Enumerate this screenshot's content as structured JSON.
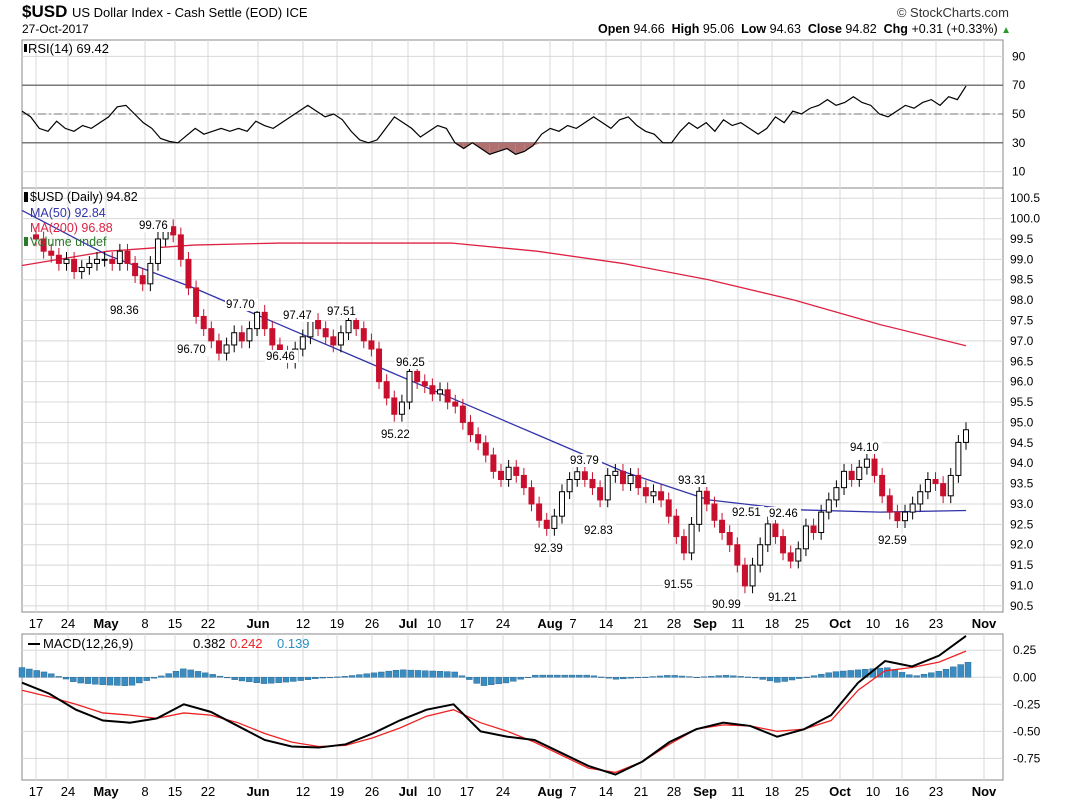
{
  "header": {
    "symbol": "$USD",
    "name": "US Dollar Index - Cash Settle (EOD)",
    "exchange": "ICE",
    "brand": "© StockCharts.com",
    "date": "27-Oct-2017",
    "open_label": "Open",
    "open": "94.66",
    "high_label": "High",
    "high": "95.06",
    "low_label": "Low",
    "low": "94.63",
    "close_label": "Close",
    "close": "94.82",
    "chg_label": "Chg",
    "chg": "+0.31 (+0.33%)"
  },
  "colors": {
    "up": "#ffffff",
    "down": "#c8102e",
    "ma50": "#3333aa",
    "ma200": "#dd2244",
    "rsi": "#000000",
    "rsi_fill": "#b07070",
    "macd": "#000000",
    "signal": "#ee2222",
    "hist": "#3a8cc0",
    "grid": "#d8d8d8"
  },
  "chart_data": [
    {
      "type": "line",
      "panel": "RSI",
      "legend": "RSI(14) 69.42",
      "ylim": [
        0,
        100
      ],
      "yticks": [
        10,
        30,
        50,
        70,
        90
      ],
      "levels": [
        70,
        50,
        30
      ],
      "series": [
        {
          "name": "RSI(14)",
          "values": [
            52,
            48,
            40,
            38,
            45,
            40,
            38,
            42,
            40,
            44,
            48,
            55,
            56,
            50,
            44,
            40,
            33,
            31,
            30,
            35,
            40,
            36,
            38,
            40,
            38,
            40,
            38,
            45,
            42,
            40,
            44,
            48,
            52,
            56,
            52,
            48,
            50,
            46,
            38,
            32,
            30,
            32,
            40,
            48,
            44,
            40,
            34,
            38,
            42,
            40,
            30,
            26,
            30,
            26,
            22,
            24,
            26,
            22,
            24,
            28,
            36,
            40,
            38,
            42,
            40,
            44,
            48,
            44,
            40,
            46,
            48,
            42,
            38,
            36,
            30,
            30,
            38,
            44,
            40,
            44,
            38,
            46,
            42,
            44,
            40,
            36,
            40,
            48,
            44,
            52,
            50,
            54,
            56,
            60,
            56,
            58,
            62,
            58,
            56,
            50,
            48,
            52,
            56,
            54,
            58,
            60,
            56,
            62,
            60,
            69.42
          ]
        }
      ]
    },
    {
      "type": "candlestick",
      "panel": "Price",
      "legend": [
        "$USD (Daily) 94.82",
        "MA(50) 92.84",
        "MA(200) 96.88",
        "Volume undef"
      ],
      "ylim": [
        90.35,
        100.75
      ],
      "yticks": [
        "100.5",
        "100.0",
        "99.5",
        "99.0",
        "98.5",
        "98.0",
        "97.5",
        "97.0",
        "96.5",
        "96.0",
        "95.5",
        "95.0",
        "94.5",
        "94.0",
        "93.5",
        "93.0",
        "92.5",
        "92.0",
        "91.5",
        "91.0",
        "90.5"
      ],
      "closes": [
        99.5,
        99.2,
        99.1,
        98.9,
        99.0,
        98.7,
        98.8,
        98.9,
        99.0,
        99.0,
        98.9,
        99.2,
        98.9,
        98.6,
        98.4,
        98.9,
        99.5,
        99.8,
        99.6,
        99.0,
        98.3,
        97.6,
        97.3,
        97.0,
        96.7,
        96.9,
        97.2,
        97.0,
        97.3,
        97.7,
        97.3,
        96.9,
        96.7,
        96.5,
        96.8,
        97.1,
        97.5,
        97.3,
        97.1,
        96.9,
        97.2,
        97.5,
        97.3,
        97.0,
        96.8,
        96.0,
        95.6,
        95.2,
        95.5,
        96.25,
        96.0,
        95.9,
        95.7,
        95.8,
        95.5,
        95.4,
        95.0,
        94.7,
        94.5,
        94.2,
        93.8,
        93.6,
        93.9,
        93.7,
        93.4,
        93.0,
        92.6,
        92.4,
        92.7,
        93.3,
        93.6,
        93.79,
        93.6,
        93.4,
        93.1,
        93.7,
        93.8,
        93.5,
        93.7,
        93.4,
        93.2,
        93.3,
        93.1,
        92.7,
        92.2,
        91.8,
        92.5,
        93.31,
        93.0,
        92.6,
        92.3,
        92.0,
        91.5,
        90.99,
        91.5,
        92.0,
        92.51,
        92.2,
        91.8,
        91.6,
        91.9,
        92.46,
        92.3,
        92.8,
        93.1,
        93.4,
        93.8,
        93.6,
        93.9,
        94.1,
        93.7,
        93.2,
        92.8,
        92.59,
        92.8,
        93.0,
        93.3,
        93.6,
        93.5,
        93.2,
        93.7,
        94.51,
        94.82
      ],
      "annotations": [
        "99.76",
        "98.36",
        "97.70",
        "96.70",
        "96.46",
        "97.47",
        "97.51",
        "96.25",
        "95.22",
        "93.79",
        "92.83",
        "92.39",
        "93.31",
        "91.55",
        "92.51",
        "92.46",
        "90.99",
        "91.21",
        "94.10",
        "92.59"
      ],
      "series": [
        {
          "name": "MA(50)",
          "values": [
            100.2,
            99.1,
            98.3,
            97.4,
            96.5,
            95.6,
            94.7,
            93.8,
            93.1,
            92.86,
            92.8,
            92.84
          ]
        },
        {
          "name": "MA(200)",
          "values": [
            98.85,
            99.2,
            99.35,
            99.4,
            99.4,
            99.4,
            99.2,
            98.9,
            98.5,
            98.0,
            97.4,
            96.88
          ]
        }
      ]
    },
    {
      "type": "line",
      "panel": "MACD",
      "legend_label": "MACD(12,26,9)",
      "legend_macd": "0.382",
      "legend_signal": "0.242",
      "legend_hist": "0.139",
      "ylim": [
        -0.95,
        0.4
      ],
      "yticks": [
        "0.25",
        "0.00",
        "-0.25",
        "-0.50",
        "-0.75"
      ],
      "series": [
        {
          "name": "MACD",
          "values": [
            -0.05,
            -0.15,
            -0.3,
            -0.4,
            -0.42,
            -0.38,
            -0.25,
            -0.32,
            -0.45,
            -0.58,
            -0.64,
            -0.65,
            -0.62,
            -0.52,
            -0.4,
            -0.3,
            -0.25,
            -0.5,
            -0.55,
            -0.58,
            -0.7,
            -0.82,
            -0.9,
            -0.78,
            -0.6,
            -0.48,
            -0.42,
            -0.45,
            -0.55,
            -0.48,
            -0.35,
            -0.05,
            0.15,
            0.1,
            0.2,
            0.382
          ]
        },
        {
          "name": "Signal",
          "values": [
            -0.12,
            -0.18,
            -0.25,
            -0.33,
            -0.35,
            -0.38,
            -0.33,
            -0.35,
            -0.42,
            -0.52,
            -0.6,
            -0.64,
            -0.63,
            -0.56,
            -0.47,
            -0.36,
            -0.3,
            -0.42,
            -0.5,
            -0.6,
            -0.72,
            -0.84,
            -0.88,
            -0.78,
            -0.62,
            -0.48,
            -0.44,
            -0.45,
            -0.5,
            -0.48,
            -0.4,
            -0.12,
            0.06,
            0.09,
            0.14,
            0.242
          ]
        },
        {
          "name": "Histogram",
          "values": [
            0.09,
            0.04,
            -0.05,
            -0.07,
            -0.08,
            0,
            0.08,
            0.03,
            -0.03,
            -0.06,
            -0.04,
            -0.01,
            0.01,
            0.04,
            0.07,
            0.06,
            0.05,
            -0.08,
            -0.05,
            0.02,
            0.02,
            0.02,
            -0.02,
            0,
            0.02,
            0,
            0.02,
            0,
            -0.05,
            0,
            0.05,
            0.07,
            0.09,
            0.01,
            0.06,
            0.139
          ]
        }
      ]
    }
  ],
  "xaxis": {
    "labels": [
      "17",
      "24",
      "May",
      "8",
      "15",
      "22",
      "Jun",
      "12",
      "19",
      "26",
      "Jul",
      "10",
      "17",
      "24",
      "Aug",
      "7",
      "14",
      "21",
      "28",
      "Sep",
      "11",
      "18",
      "25",
      "Oct",
      "10",
      "16",
      "23",
      "Nov"
    ],
    "bold": [
      "May",
      "Jun",
      "Jul",
      "Aug",
      "Sep",
      "Oct",
      "Nov"
    ]
  }
}
